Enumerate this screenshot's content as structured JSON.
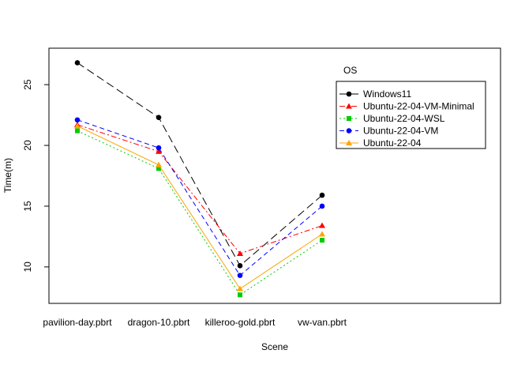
{
  "chart_data": {
    "type": "line",
    "title": "",
    "xlabel": "Scene",
    "ylabel": "Time(m)",
    "categories": [
      "pavilion-day.pbrt",
      "dragon-10.pbrt",
      "killeroo-gold.pbrt",
      "vw-van.pbrt"
    ],
    "ylim": [
      7.0,
      28.0
    ],
    "yticks": [
      10,
      15,
      20,
      25
    ],
    "grid": false,
    "legend": {
      "title": "OS",
      "position": "top-right"
    },
    "series": [
      {
        "name": "Windows11",
        "values": [
          26.8,
          22.3,
          10.1,
          15.9
        ],
        "color": "#000000",
        "dash": "10,5",
        "marker": "circle"
      },
      {
        "name": "Ubuntu-22-04-VM-Minimal",
        "values": [
          21.7,
          19.5,
          11.1,
          13.4
        ],
        "color": "#ff0000",
        "dash": "7,3,2,3",
        "marker": "triangle"
      },
      {
        "name": "Ubuntu-22-04-WSL",
        "values": [
          21.2,
          18.1,
          7.7,
          12.2
        ],
        "color": "#00cc00",
        "dash": "2,3",
        "marker": "square"
      },
      {
        "name": "Ubuntu-22-04-VM",
        "values": [
          22.1,
          19.8,
          9.3,
          15.0
        ],
        "color": "#0000ff",
        "dash": "6,4",
        "marker": "circle"
      },
      {
        "name": "Ubuntu-22-04",
        "values": [
          21.6,
          18.4,
          8.2,
          12.7
        ],
        "color": "#ffa500",
        "dash": "",
        "marker": "triangle"
      }
    ]
  }
}
